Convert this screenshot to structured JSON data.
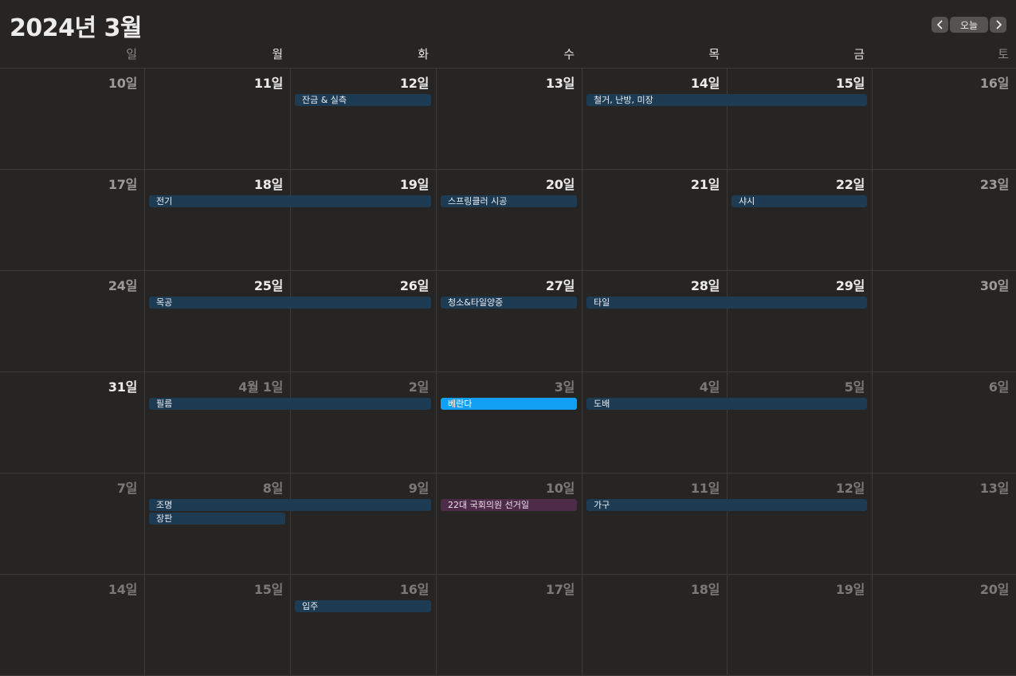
{
  "header": {
    "title": "2024년 3월",
    "today_label": "오늘",
    "prev_icon": "chevron-left-icon",
    "next_icon": "chevron-right-icon"
  },
  "weekdays": [
    "일",
    "월",
    "화",
    "수",
    "목",
    "금",
    "토"
  ],
  "weeks": [
    {
      "days": [
        {
          "label": "10일",
          "kind": "weekend"
        },
        {
          "label": "11일",
          "kind": "current"
        },
        {
          "label": "12일",
          "kind": "current"
        },
        {
          "label": "13일",
          "kind": "current"
        },
        {
          "label": "14일",
          "kind": "current"
        },
        {
          "label": "15일",
          "kind": "current"
        },
        {
          "label": "16일",
          "kind": "weekend"
        }
      ]
    },
    {
      "days": [
        {
          "label": "17일",
          "kind": "weekend"
        },
        {
          "label": "18일",
          "kind": "current"
        },
        {
          "label": "19일",
          "kind": "current"
        },
        {
          "label": "20일",
          "kind": "current"
        },
        {
          "label": "21일",
          "kind": "current"
        },
        {
          "label": "22일",
          "kind": "current"
        },
        {
          "label": "23일",
          "kind": "weekend"
        }
      ]
    },
    {
      "days": [
        {
          "label": "24일",
          "kind": "weekend"
        },
        {
          "label": "25일",
          "kind": "current"
        },
        {
          "label": "26일",
          "kind": "current"
        },
        {
          "label": "27일",
          "kind": "current"
        },
        {
          "label": "28일",
          "kind": "current"
        },
        {
          "label": "29일",
          "kind": "current"
        },
        {
          "label": "30일",
          "kind": "weekend"
        }
      ]
    },
    {
      "days": [
        {
          "label": "31일",
          "kind": "current"
        },
        {
          "label": "4월 1일",
          "kind": "other"
        },
        {
          "label": "2일",
          "kind": "other"
        },
        {
          "label": "3일",
          "kind": "other"
        },
        {
          "label": "4일",
          "kind": "other"
        },
        {
          "label": "5일",
          "kind": "other"
        },
        {
          "label": "6일",
          "kind": "other"
        }
      ]
    },
    {
      "days": [
        {
          "label": "7일",
          "kind": "other"
        },
        {
          "label": "8일",
          "kind": "other"
        },
        {
          "label": "9일",
          "kind": "other"
        },
        {
          "label": "10일",
          "kind": "other"
        },
        {
          "label": "11일",
          "kind": "other"
        },
        {
          "label": "12일",
          "kind": "other"
        },
        {
          "label": "13일",
          "kind": "other"
        }
      ]
    },
    {
      "days": [
        {
          "label": "14일",
          "kind": "other"
        },
        {
          "label": "15일",
          "kind": "other"
        },
        {
          "label": "16일",
          "kind": "other"
        },
        {
          "label": "17일",
          "kind": "other"
        },
        {
          "label": "18일",
          "kind": "other"
        },
        {
          "label": "19일",
          "kind": "other"
        },
        {
          "label": "20일",
          "kind": "other"
        }
      ]
    }
  ],
  "events": [
    {
      "title": "잔금 & 실측",
      "week": 0,
      "start_day": 2,
      "span": 1,
      "slot": 0,
      "style": "normal"
    },
    {
      "title": "철거, 난방, 미장",
      "week": 0,
      "start_day": 4,
      "span": 2,
      "slot": 0,
      "style": "normal"
    },
    {
      "title": "전기",
      "week": 1,
      "start_day": 1,
      "span": 2,
      "slot": 0,
      "style": "normal"
    },
    {
      "title": "스프링클러 시공",
      "week": 1,
      "start_day": 3,
      "span": 1,
      "slot": 0,
      "style": "normal"
    },
    {
      "title": "샤시",
      "week": 1,
      "start_day": 5,
      "span": 1,
      "slot": 0,
      "style": "normal"
    },
    {
      "title": "목공",
      "week": 2,
      "start_day": 1,
      "span": 2,
      "slot": 0,
      "style": "normal"
    },
    {
      "title": "청소&타일양중",
      "week": 2,
      "start_day": 3,
      "span": 1,
      "slot": 0,
      "style": "normal"
    },
    {
      "title": "타일",
      "week": 2,
      "start_day": 4,
      "span": 2,
      "slot": 0,
      "style": "normal"
    },
    {
      "title": "필름",
      "week": 3,
      "start_day": 1,
      "span": 2,
      "slot": 0,
      "style": "normal"
    },
    {
      "title": "베란다",
      "week": 3,
      "start_day": 3,
      "span": 1,
      "slot": 0,
      "style": "selected"
    },
    {
      "title": "도배",
      "week": 3,
      "start_day": 4,
      "span": 2,
      "slot": 0,
      "style": "normal"
    },
    {
      "title": "조명",
      "week": 4,
      "start_day": 1,
      "span": 2,
      "slot": 0,
      "style": "normal"
    },
    {
      "title": "장판",
      "week": 4,
      "start_day": 1,
      "span": 1,
      "slot": 1,
      "style": "normal"
    },
    {
      "title": "22대 국회의원 선거일",
      "week": 4,
      "start_day": 3,
      "span": 1,
      "slot": 0,
      "style": "holiday"
    },
    {
      "title": "가구",
      "week": 4,
      "start_day": 4,
      "span": 2,
      "slot": 0,
      "style": "normal"
    },
    {
      "title": "입주",
      "week": 5,
      "start_day": 2,
      "span": 1,
      "slot": 0,
      "style": "normal"
    }
  ],
  "colors": {
    "background": "#272523",
    "event": "#1e3b54",
    "event_selected": "#12a0f5",
    "event_holiday": "#4d2b49"
  }
}
